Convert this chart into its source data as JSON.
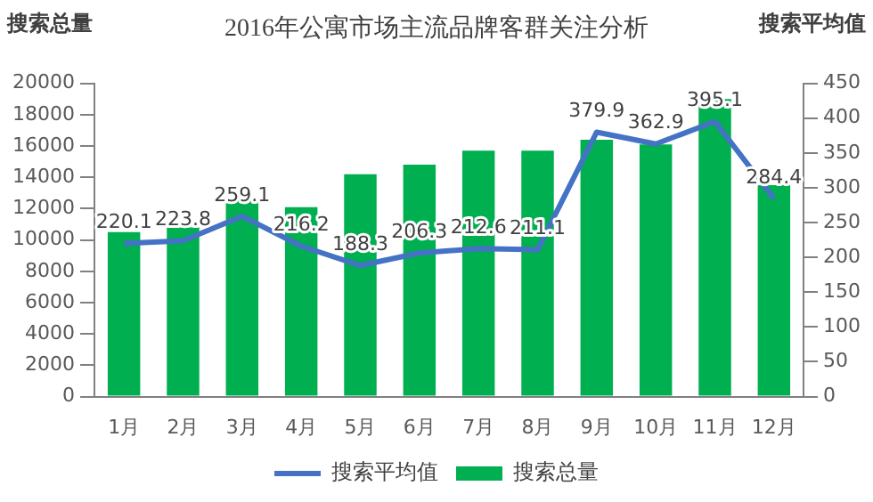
{
  "chart_data": {
    "type": "bar",
    "title": "2016年公寓市场主流品牌客群关注分析",
    "ylabel": "搜索总量",
    "y2label": "搜索平均值",
    "categories": [
      "1月",
      "2月",
      "3月",
      "4月",
      "5月",
      "6月",
      "7月",
      "8月",
      "9月",
      "10月",
      "11月",
      "12月"
    ],
    "series": [
      {
        "name": "搜索总量",
        "type": "bar",
        "color": "#00b050",
        "values": [
          10500,
          10800,
          12500,
          12100,
          14200,
          14800,
          15700,
          15700,
          16400,
          16100,
          19000,
          13500
        ]
      },
      {
        "name": "搜索平均值",
        "type": "line",
        "axis": "y2",
        "color": "#4472c4",
        "values": [
          220.1,
          223.8,
          259.1,
          216.2,
          188.3,
          206.3,
          212.6,
          211.1,
          379.9,
          362.9,
          395.1,
          284.4
        ],
        "value_labels": [
          "220.1",
          "223.8",
          "259.1",
          "216.2",
          "188.3",
          "206.3",
          "212.6",
          "211.1",
          "379.9",
          "362.9",
          "395.1",
          "284.4"
        ]
      }
    ],
    "ylim": [
      0,
      20000
    ],
    "yticks": [
      0,
      2000,
      4000,
      6000,
      8000,
      10000,
      12000,
      14000,
      16000,
      18000,
      20000
    ],
    "y2lim": [
      0,
      450
    ],
    "y2ticks": [
      0,
      50,
      100,
      150,
      200,
      250,
      300,
      350,
      400,
      450
    ],
    "grid": false,
    "legend": "bottom",
    "marker": "none",
    "line_style": "solid"
  }
}
